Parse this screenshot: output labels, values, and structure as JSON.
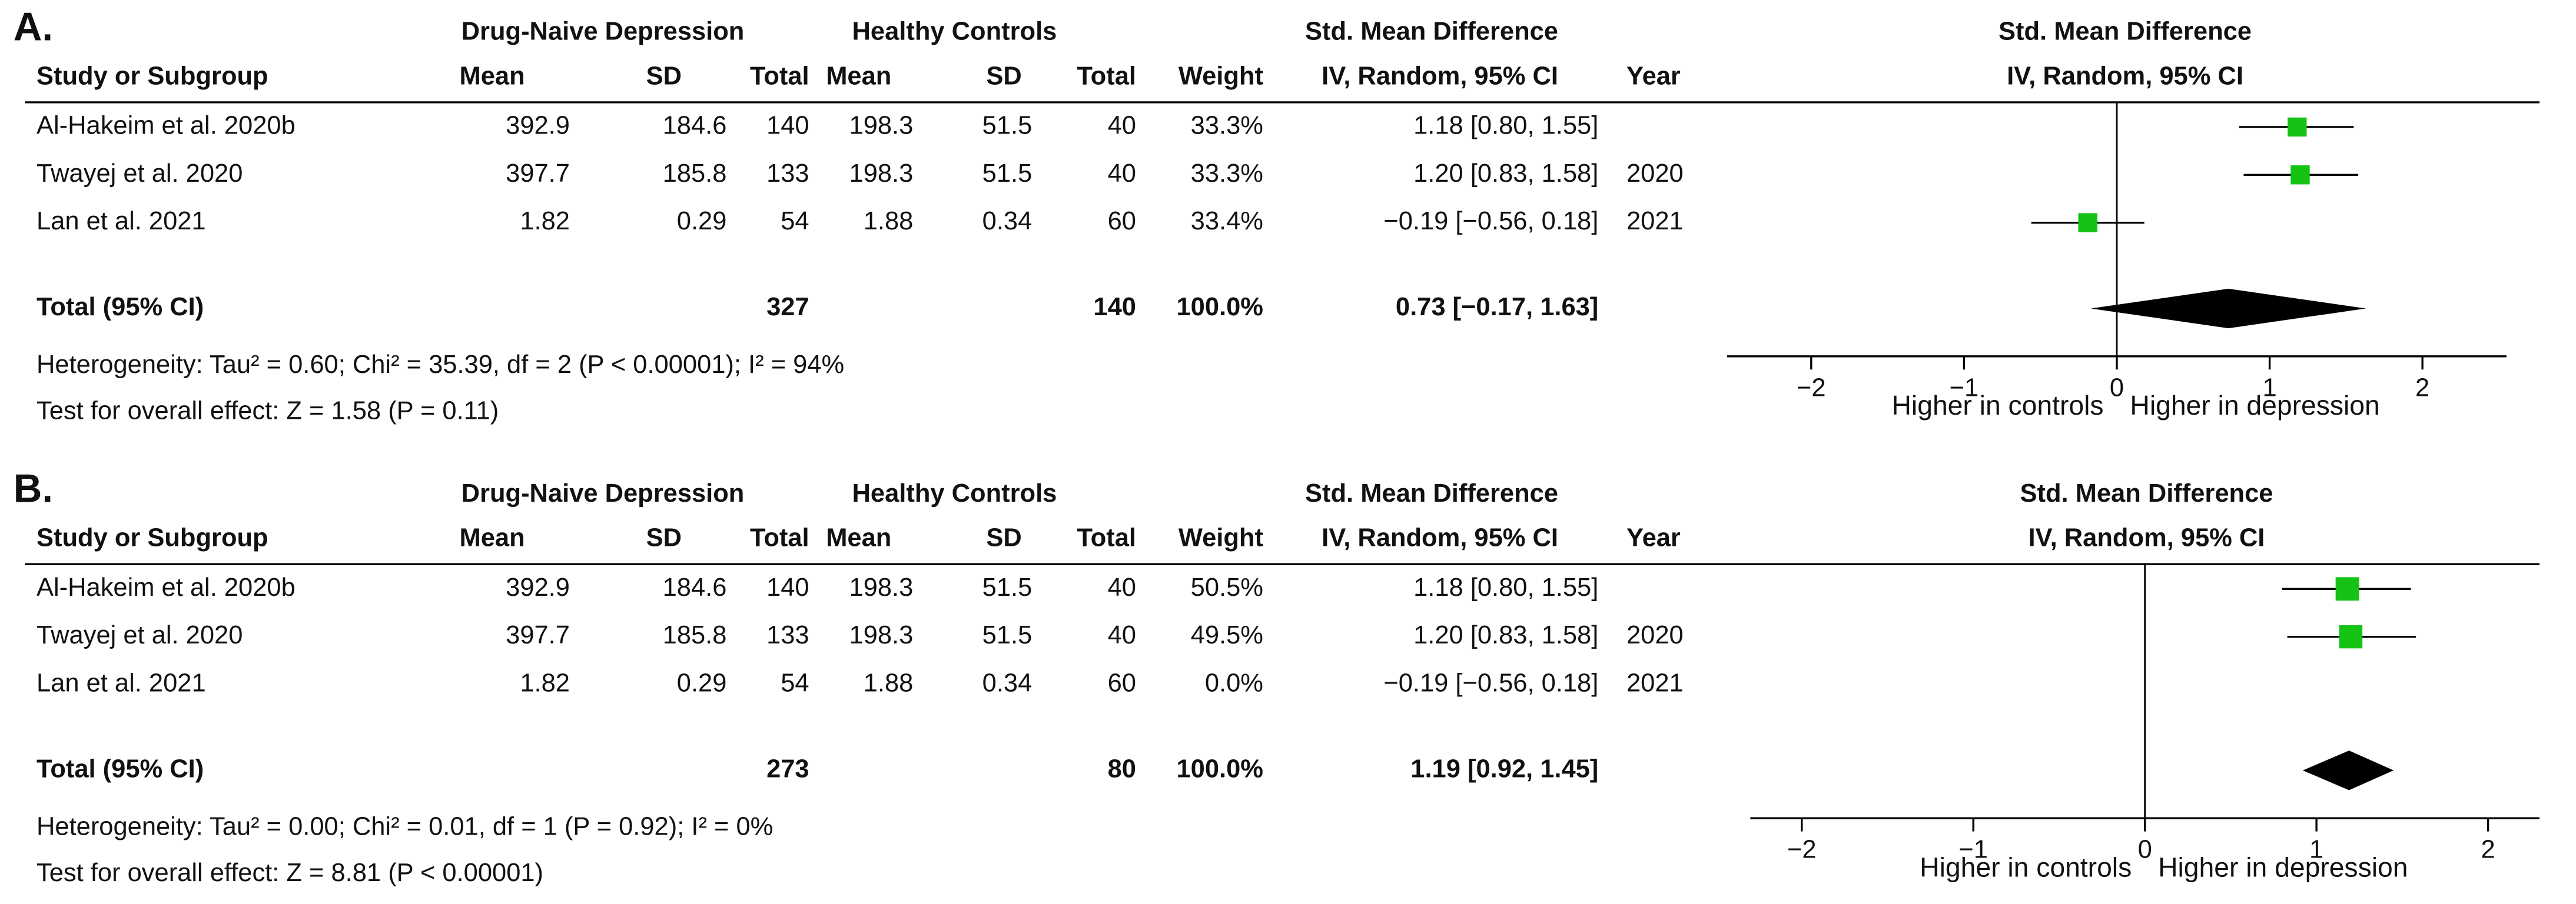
{
  "chart_data": [
    {
      "type": "forest",
      "panel": "A.",
      "group_headers": {
        "experimental": "Drug-Naive Depression",
        "control": "Healthy Controls",
        "effect": "Std. Mean Difference",
        "plot": "Std. Mean Difference"
      },
      "columns": [
        "Study or Subgroup",
        "Mean",
        "SD",
        "Total",
        "Mean",
        "SD",
        "Total",
        "Weight",
        "IV, Random, 95% CI",
        "Year"
      ],
      "plot_subtitle": "IV, Random, 95% CI",
      "categories": [
        "Al-Hakeim et al. 2020b",
        "Twayej et al. 2020",
        "Lan et al. 2021"
      ],
      "table": [
        [
          "392.9",
          "184.6",
          "140",
          "198.3",
          "51.5",
          "40"
        ],
        [
          "397.7",
          "185.8",
          "133",
          "198.3",
          "51.5",
          "40"
        ],
        [
          "1.82",
          "0.29",
          "54",
          "1.88",
          "0.34",
          "60"
        ]
      ],
      "weights": [
        33.3,
        33.3,
        33.4
      ],
      "weight_labels": [
        "33.3%",
        "33.3%",
        "33.4%"
      ],
      "values": [
        1.18,
        1.2,
        -0.19
      ],
      "ci_low": [
        0.8,
        0.83,
        -0.56
      ],
      "ci_high": [
        1.55,
        1.58,
        0.18
      ],
      "value_labels": [
        "1.18 [0.80, 1.55]",
        "1.20 [0.83, 1.58]",
        "−0.19 [−0.56, 0.18]"
      ],
      "years": [
        null,
        "2020",
        "2021"
      ],
      "total": {
        "label": "Total (95% CI)",
        "experimental": "327",
        "control": "140",
        "weight_label": "100.0%",
        "value": 0.73,
        "ci_low": -0.17,
        "ci_high": 1.63,
        "value_label": "0.73 [−0.17, 1.63]"
      },
      "heterogeneity": "Heterogeneity: Tau² = 0.60; Chi² = 35.39, df = 2 (P < 0.00001); I² = 94%",
      "overall_effect": "Test for overall effect: Z = 1.58 (P = 0.11)",
      "xlim": [
        -2.55,
        2.55
      ],
      "xticks": [
        {
          "value": -2,
          "label": "−2"
        },
        {
          "value": -1,
          "label": "−1"
        },
        0,
        1,
        2
      ],
      "xlabel_left": "Higher in controls",
      "xlabel_right": "Higher in depression",
      "color": "#14c314"
    },
    {
      "type": "forest",
      "panel": "B.",
      "group_headers": {
        "experimental": "Drug-Naive Depression",
        "control": "Healthy Controls",
        "effect": "Std. Mean Difference",
        "plot": "Std. Mean Difference"
      },
      "columns": [
        "Study or Subgroup",
        "Mean",
        "SD",
        "Total",
        "Mean",
        "SD",
        "Total",
        "Weight",
        "IV, Random, 95% CI",
        "Year"
      ],
      "plot_subtitle": "IV, Random, 95% CI",
      "categories": [
        "Al-Hakeim et al. 2020b",
        "Twayej et al. 2020",
        "Lan et al. 2021"
      ],
      "table": [
        [
          "392.9",
          "184.6",
          "140",
          "198.3",
          "51.5",
          "40"
        ],
        [
          "397.7",
          "185.8",
          "133",
          "198.3",
          "51.5",
          "40"
        ],
        [
          "1.82",
          "0.29",
          "54",
          "1.88",
          "0.34",
          "60"
        ]
      ],
      "weights": [
        50.5,
        49.5,
        0.0
      ],
      "weight_labels": [
        "50.5%",
        "49.5%",
        "0.0%"
      ],
      "values": [
        1.18,
        1.2,
        -0.19
      ],
      "ci_low": [
        0.8,
        0.83,
        -0.56
      ],
      "ci_high": [
        1.55,
        1.58,
        0.18
      ],
      "value_labels": [
        "1.18 [0.80, 1.55]",
        "1.20 [0.83, 1.58]",
        "−0.19 [−0.56, 0.18]"
      ],
      "years": [
        null,
        "2020",
        "2021"
      ],
      "total": {
        "label": "Total (95% CI)",
        "experimental": "273",
        "control": "80",
        "weight_label": "100.0%",
        "value": 1.19,
        "ci_low": 0.92,
        "ci_high": 1.45,
        "value_label": "1.19 [0.92, 1.45]"
      },
      "heterogeneity": "Heterogeneity: Tau² = 0.00; Chi² = 0.01, df = 1 (P = 0.92); I² = 0%",
      "overall_effect": "Test for overall effect: Z = 8.81 (P < 0.00001)",
      "xlim": [
        -2.3,
        2.3
      ],
      "xticks": [
        {
          "value": -2,
          "label": "−2"
        },
        {
          "value": -1,
          "label": "−1"
        },
        0,
        1,
        2
      ],
      "xlabel_left": "Higher in controls",
      "xlabel_right": "Higher in depression",
      "color": "#14c314"
    }
  ]
}
